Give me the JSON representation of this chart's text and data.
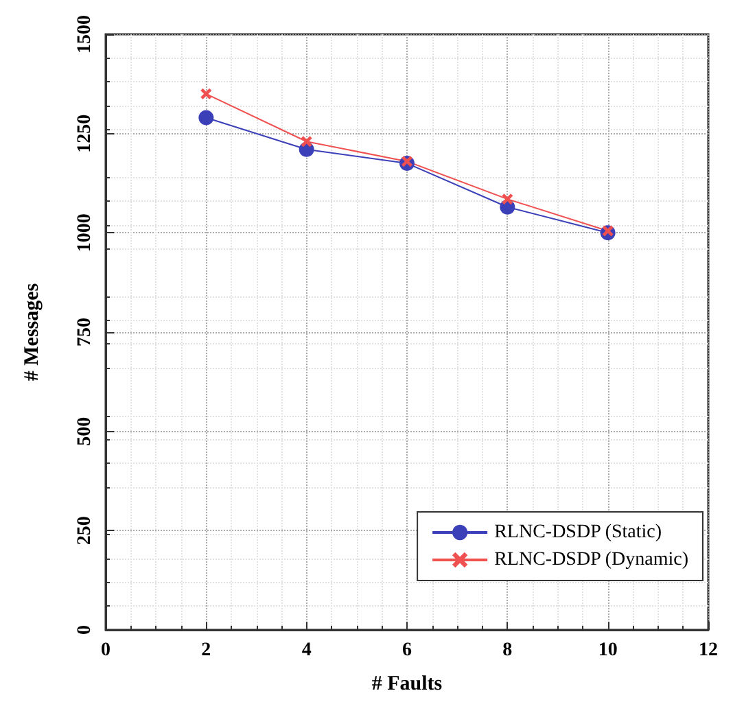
{
  "chart_data": {
    "type": "line",
    "xlabel": "# Faults",
    "ylabel": "# Messages",
    "x": [
      2,
      4,
      6,
      8,
      10
    ],
    "series": [
      {
        "name": "RLNC-DSDP (Static)",
        "color": "#3b3fb8",
        "marker": "circle",
        "values": [
          1290,
          1210,
          1175,
          1065,
          1000
        ]
      },
      {
        "name": "RLNC-DSDP (Dynamic)",
        "color": "#f05050",
        "marker": "cross",
        "values": [
          1350,
          1230,
          1180,
          1085,
          1005
        ]
      }
    ],
    "xlim": [
      0,
      12
    ],
    "xticks": [
      0,
      2,
      4,
      6,
      8,
      10,
      12
    ],
    "ylim": [
      0,
      1500
    ],
    "yticks": [
      0,
      250,
      500,
      750,
      1000,
      1250,
      1500
    ],
    "grid": true,
    "legend": "bottom right",
    "line_style": "solid"
  }
}
